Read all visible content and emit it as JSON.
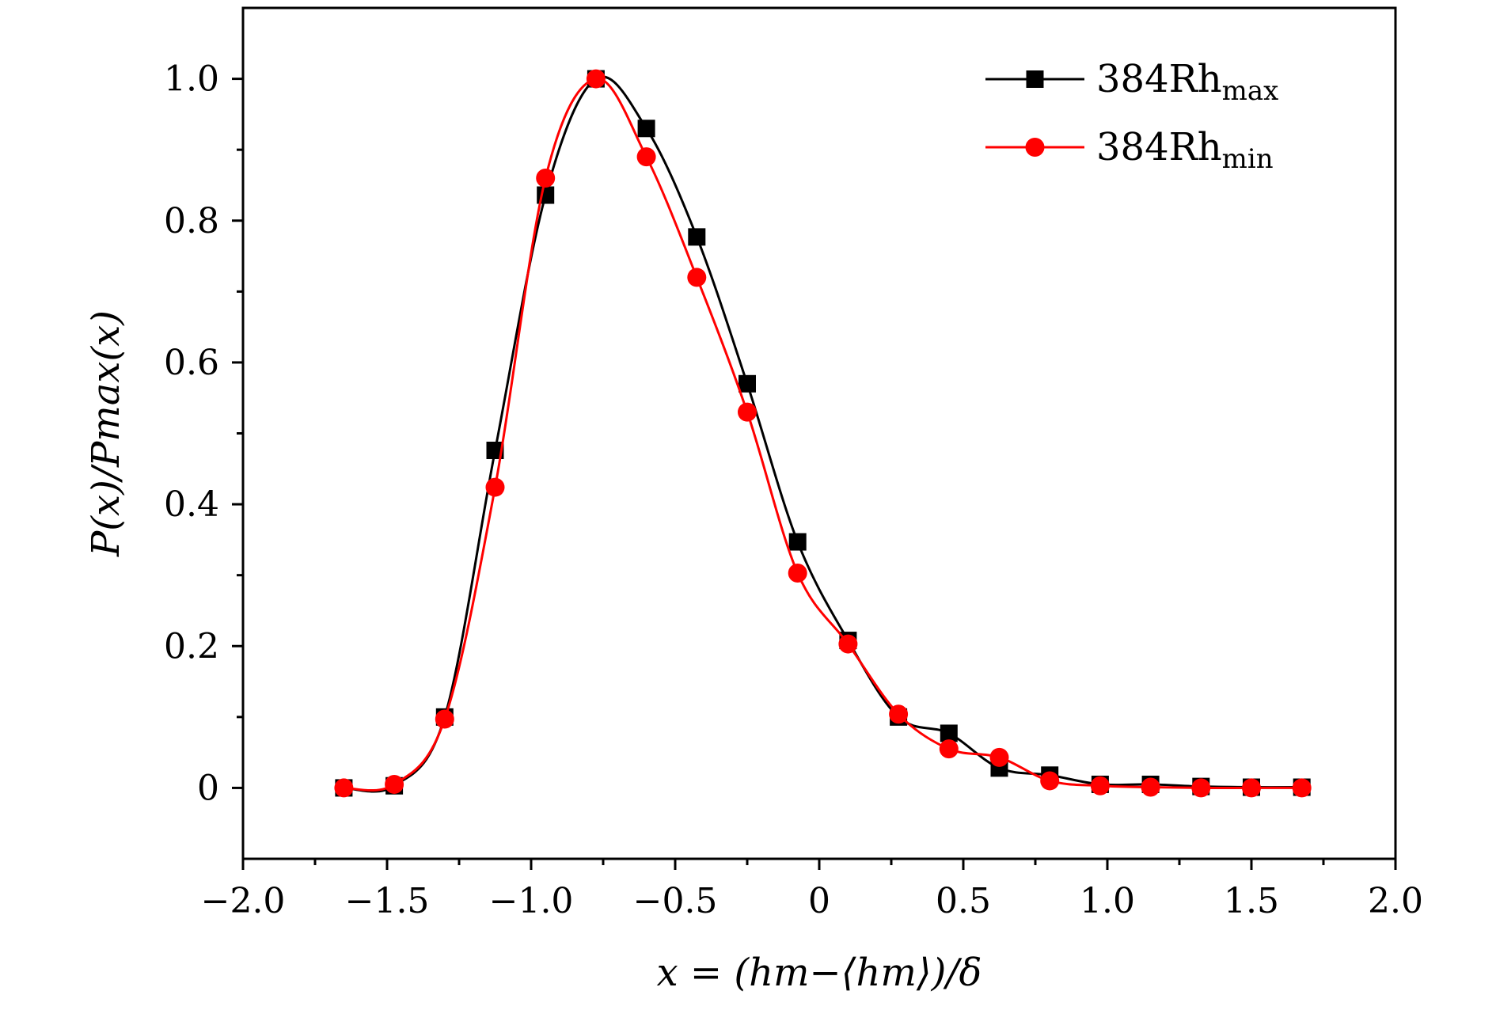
{
  "chart_data": {
    "type": "scatter",
    "title": "",
    "xlabel": "x = (hm−⟨hm⟩)/δ",
    "ylabel": "P(x)/Pmax(x)",
    "xlim": [
      -2.0,
      2.0
    ],
    "ylim": [
      -0.1,
      1.1
    ],
    "xticks": [
      -2.0,
      -1.5,
      -1.0,
      -0.5,
      0,
      0.5,
      1.0,
      1.5,
      2.0
    ],
    "xtick_labels": [
      "−2.0",
      "−1.5",
      "−1.0",
      "−0.5",
      "0",
      "0.5",
      "1.0",
      "1.5",
      "2.0"
    ],
    "yticks": [
      0,
      0.2,
      0.4,
      0.6,
      0.8,
      1.0
    ],
    "ytick_labels": [
      "0",
      "0.2",
      "0.4",
      "0.6",
      "0.8",
      "1.0"
    ],
    "legend_position": "top-right",
    "series": [
      {
        "name": "384Rhmax",
        "legend_main": "384Rh",
        "legend_sub": "max",
        "color": "#000000",
        "marker": "square",
        "x": [
          -1.65,
          -1.475,
          -1.3,
          -1.125,
          -0.95,
          -0.775,
          -0.6,
          -0.425,
          -0.25,
          -0.075,
          0.1,
          0.275,
          0.45,
          0.625,
          0.8,
          0.975,
          1.15,
          1.325,
          1.5,
          1.675
        ],
        "values": [
          0.0,
          0.003,
          0.1,
          0.476,
          0.836,
          1.0,
          0.93,
          0.777,
          0.57,
          0.347,
          0.208,
          0.1,
          0.077,
          0.028,
          0.018,
          0.005,
          0.005,
          0.002,
          0.001,
          0.001
        ]
      },
      {
        "name": "384Rhmin",
        "legend_main": "384Rh",
        "legend_sub": "min",
        "color": "#ff0000",
        "marker": "circle",
        "x": [
          -1.65,
          -1.475,
          -1.3,
          -1.125,
          -0.95,
          -0.775,
          -0.6,
          -0.425,
          -0.25,
          -0.075,
          0.1,
          0.275,
          0.45,
          0.625,
          0.8,
          0.975,
          1.15,
          1.325,
          1.5,
          1.675
        ],
        "values": [
          0.0,
          0.005,
          0.097,
          0.424,
          0.86,
          1.0,
          0.89,
          0.72,
          0.53,
          0.303,
          0.203,
          0.104,
          0.055,
          0.043,
          0.01,
          0.003,
          0.001,
          0.0,
          0.0,
          0.0
        ]
      }
    ]
  }
}
